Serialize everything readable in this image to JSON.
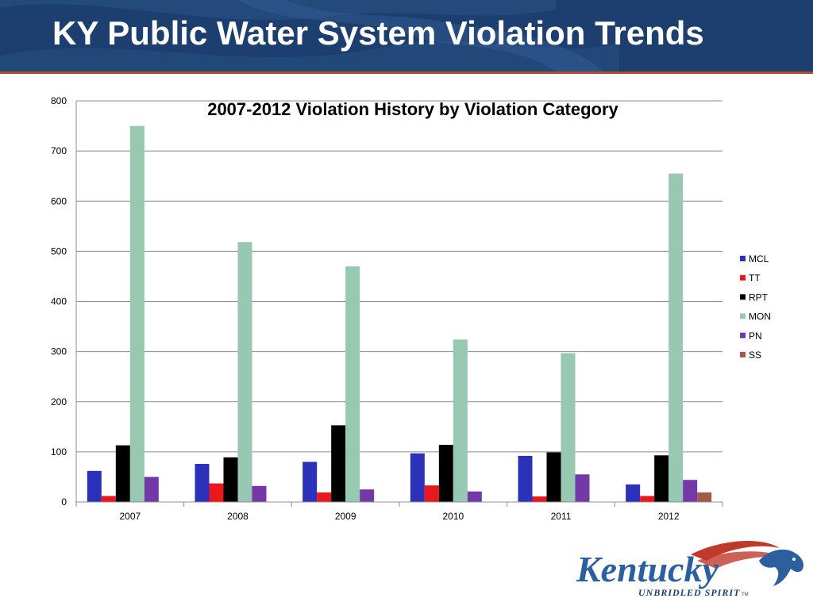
{
  "header": {
    "title": "KY Public Water System Violation Trends"
  },
  "colors": {
    "header_bg": "#1d3f6f",
    "header_rule": "#b7472a",
    "MCL": "#2b31b8",
    "TT": "#e8181c",
    "RPT": "#000000",
    "MON": "#97c9b2",
    "PN": "#7438a7",
    "SS": "#a45848"
  },
  "logo": {
    "wordmark": "Kentucky",
    "tagline": "UNBRIDLED SPIRIT",
    "trademark": "TM"
  },
  "chart_data": {
    "type": "bar",
    "title": "2007-2012 Violation History by Violation Category",
    "xlabel": "",
    "ylabel": "",
    "categories": [
      "2007",
      "2008",
      "2009",
      "2010",
      "2011",
      "2012"
    ],
    "ylim": [
      0,
      800
    ],
    "yticks": [
      0,
      100,
      200,
      300,
      400,
      500,
      600,
      700,
      800
    ],
    "grid": true,
    "legend_position": "right",
    "series": [
      {
        "name": "MCL",
        "color": "#2b31b8",
        "values": [
          62,
          76,
          80,
          97,
          92,
          35
        ]
      },
      {
        "name": "TT",
        "color": "#e8181c",
        "values": [
          12,
          37,
          19,
          33,
          11,
          12
        ]
      },
      {
        "name": "RPT",
        "color": "#000000",
        "values": [
          113,
          89,
          153,
          114,
          99,
          93
        ]
      },
      {
        "name": "MON",
        "color": "#97c9b2",
        "values": [
          750,
          518,
          470,
          324,
          297,
          655
        ]
      },
      {
        "name": "PN",
        "color": "#7438a7",
        "values": [
          50,
          32,
          25,
          21,
          55,
          44
        ]
      },
      {
        "name": "SS",
        "color": "#a45848",
        "values": [
          0,
          0,
          0,
          0,
          0,
          19
        ]
      }
    ]
  }
}
